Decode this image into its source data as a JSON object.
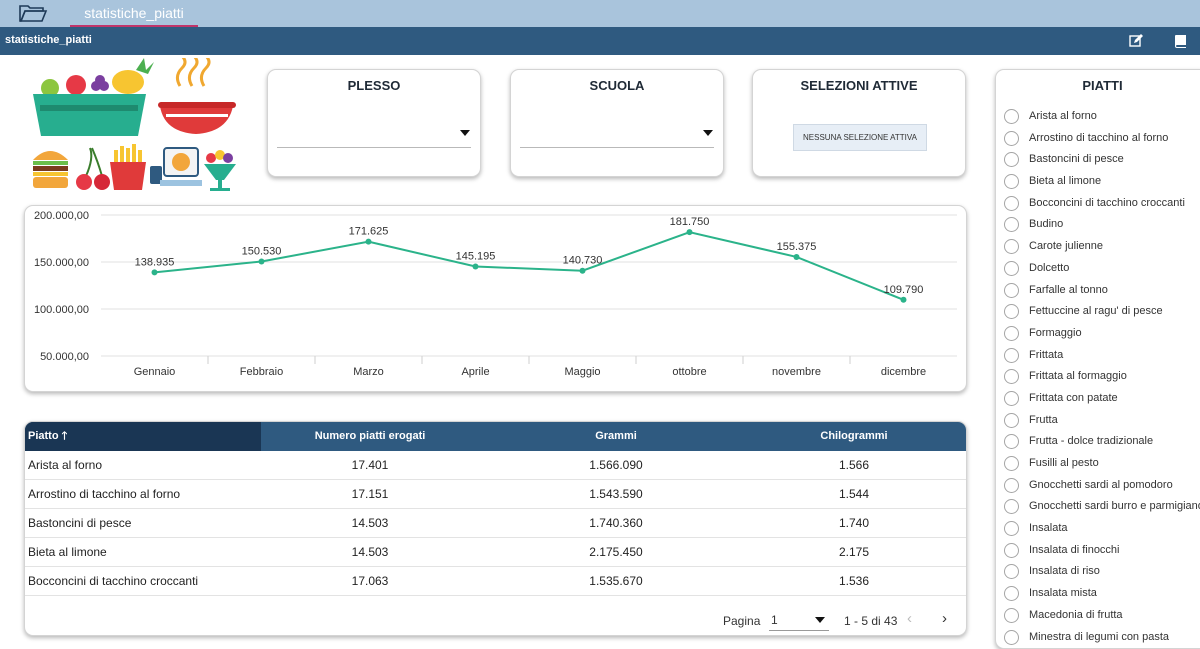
{
  "tab": {
    "label": "statistiche_piatti"
  },
  "titlebar": {
    "title": "statistiche_piatti",
    "icons": [
      "edit-icon",
      "book-icon"
    ]
  },
  "filters": {
    "plesso": {
      "title": "PLESSO",
      "value": ""
    },
    "scuola": {
      "title": "SCUOLA",
      "value": ""
    },
    "selezioni": {
      "title": "SELEZIONI ATTIVE",
      "badge": "NESSUNA SELEZIONE ATTIVA"
    }
  },
  "chart_data": {
    "type": "line",
    "categories": [
      "Gennaio",
      "Febbraio",
      "Marzo",
      "Aprile",
      "Maggio",
      "ottobre",
      "novembre",
      "dicembre"
    ],
    "values": [
      138935,
      150530,
      171625,
      145195,
      140730,
      181750,
      155375,
      109790
    ],
    "value_labels": [
      "138.935",
      "150.530",
      "171.625",
      "145.195",
      "140.730",
      "181.750",
      "155.375",
      "109.790"
    ],
    "yticks": [
      50000,
      100000,
      150000,
      200000
    ],
    "ytick_labels": [
      "50.000,00",
      "100.000,00",
      "150.000,00",
      "200.000,00"
    ],
    "ylim": [
      50000,
      200000
    ],
    "grid": true,
    "color": "#2bb38a"
  },
  "table": {
    "headers": [
      "Piatto",
      "Numero piatti erogati",
      "Grammi",
      "Chilogrammi"
    ],
    "rows": [
      [
        "Arista al forno",
        "17.401",
        "1.566.090",
        "1.566"
      ],
      [
        "Arrostino di tacchino al forno",
        "17.151",
        "1.543.590",
        "1.544"
      ],
      [
        "Bastoncini di pesce",
        "14.503",
        "1.740.360",
        "1.740"
      ],
      [
        "Bieta al limone",
        "14.503",
        "2.175.450",
        "2.175"
      ],
      [
        "Bocconcini di tacchino croccanti",
        "17.063",
        "1.535.670",
        "1.536"
      ]
    ],
    "pager": {
      "label": "Pagina",
      "page": "1",
      "range": "1 - 5 di 43"
    }
  },
  "piatti": {
    "title": "PIATTI",
    "items": [
      "Arista al forno",
      "Arrostino di tacchino al forno",
      "Bastoncini di pesce",
      "Bieta al limone",
      "Bocconcini di tacchino croccanti",
      "Budino",
      "Carote julienne",
      "Dolcetto",
      "Farfalle al tonno",
      "Fettuccine al ragu' di pesce",
      "Formaggio",
      "Frittata",
      "Frittata al formaggio",
      "Frittata con patate",
      "Frutta",
      "Frutta - dolce tradizionale",
      "Fusilli al pesto",
      "Gnocchetti sardi al pomodoro",
      "Gnocchetti sardi burro e parmigiano",
      "Insalata",
      "Insalata di finocchi",
      "Insalata di riso",
      "Insalata mista",
      "Macedonia di frutta",
      "Minestra di legumi con pasta"
    ]
  }
}
